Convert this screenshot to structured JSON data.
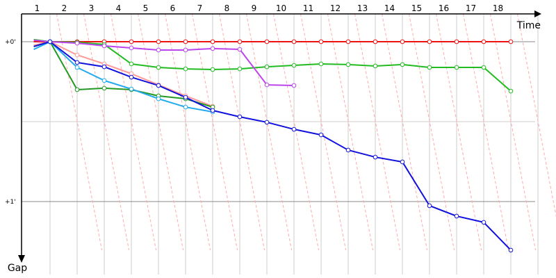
{
  "chart_data": {
    "type": "line",
    "title": "",
    "xlabel": "Time",
    "ylabel": "Gap",
    "laps": [
      "1",
      "2",
      "3",
      "4",
      "5",
      "6",
      "7",
      "8",
      "9",
      "10",
      "11",
      "12",
      "13",
      "14",
      "15",
      "16",
      "17",
      "18"
    ],
    "y_tick_labels": [
      "+0'",
      "+1'"
    ],
    "y_ticks": [
      0,
      1
    ],
    "grid": true,
    "series": [
      {
        "color": "#ee1111",
        "points": [
          [
            0.4,
            0.0
          ],
          [
            1.0,
            0.0
          ],
          [
            2.0,
            0.0
          ],
          [
            3.0,
            0.0
          ],
          [
            4.0,
            0.0
          ],
          [
            5.0,
            0.0
          ],
          [
            6.0,
            0.0
          ],
          [
            7.0,
            0.0
          ],
          [
            8.0,
            0.0
          ],
          [
            9.0,
            0.0
          ],
          [
            10.0,
            0.0
          ],
          [
            11.0,
            0.0
          ],
          [
            12.0,
            0.0
          ],
          [
            13.0,
            0.0
          ],
          [
            14.0,
            0.0
          ],
          [
            15.0,
            0.0
          ],
          [
            16.0,
            0.0
          ],
          [
            17.0,
            0.0
          ],
          [
            18.0,
            0.0
          ]
        ]
      },
      {
        "color": "#22bb22",
        "points": [
          [
            0.4,
            -0.013
          ],
          [
            1.0,
            0.0
          ],
          [
            2.0,
            0.004
          ],
          [
            3.0,
            0.017
          ],
          [
            4.0,
            0.139
          ],
          [
            5.0,
            0.161
          ],
          [
            6.0,
            0.17
          ],
          [
            7.0,
            0.174
          ],
          [
            8.0,
            0.17
          ],
          [
            9.0,
            0.157
          ],
          [
            10.0,
            0.148
          ],
          [
            11.0,
            0.139
          ],
          [
            12.0,
            0.143
          ],
          [
            13.0,
            0.152
          ],
          [
            14.0,
            0.143
          ],
          [
            15.0,
            0.161
          ],
          [
            16.0,
            0.161
          ],
          [
            17.0,
            0.161
          ],
          [
            18.0,
            0.309
          ]
        ]
      },
      {
        "color": "#bb44ee",
        "points": [
          [
            0.4,
            -0.009
          ],
          [
            1.0,
            0.0
          ],
          [
            2.0,
            0.009
          ],
          [
            3.0,
            0.026
          ],
          [
            4.0,
            0.039
          ],
          [
            5.0,
            0.052
          ],
          [
            6.0,
            0.052
          ],
          [
            7.0,
            0.043
          ],
          [
            8.0,
            0.048
          ],
          [
            9.0,
            0.27
          ],
          [
            10.0,
            0.274
          ]
        ]
      },
      {
        "color": "#ff9999",
        "points": [
          [
            0.4,
            0.022
          ],
          [
            1.0,
            0.0
          ],
          [
            2.0,
            0.083
          ],
          [
            3.0,
            0.139
          ],
          [
            4.0,
            0.2
          ],
          [
            5.0,
            0.27
          ],
          [
            6.0,
            0.339
          ],
          [
            7.0,
            0.404
          ]
        ]
      },
      {
        "color": "#229922",
        "points": [
          [
            0.4,
            0.03
          ],
          [
            1.0,
            0.0
          ],
          [
            2.0,
            0.3
          ],
          [
            3.0,
            0.291
          ],
          [
            4.0,
            0.3
          ],
          [
            5.0,
            0.339
          ],
          [
            6.0,
            0.357
          ],
          [
            7.0,
            0.409
          ]
        ]
      },
      {
        "color": "#22aaee",
        "points": [
          [
            0.4,
            0.048
          ],
          [
            1.0,
            0.0
          ],
          [
            2.0,
            0.161
          ],
          [
            3.0,
            0.243
          ],
          [
            4.0,
            0.296
          ],
          [
            5.0,
            0.357
          ],
          [
            6.0,
            0.409
          ],
          [
            7.0,
            0.439
          ]
        ]
      },
      {
        "color": "#1111dd",
        "points": [
          [
            0.4,
            0.03
          ],
          [
            1.0,
            0.0
          ],
          [
            2.0,
            0.13
          ],
          [
            3.0,
            0.157
          ],
          [
            4.0,
            0.222
          ],
          [
            5.0,
            0.274
          ],
          [
            6.0,
            0.348
          ],
          [
            7.0,
            0.43
          ],
          [
            8.0,
            0.47
          ],
          [
            9.0,
            0.504
          ],
          [
            10.0,
            0.548
          ],
          [
            11.0,
            0.583
          ],
          [
            12.0,
            0.678
          ],
          [
            13.0,
            0.722
          ],
          [
            14.0,
            0.752
          ],
          [
            15.0,
            1.026
          ],
          [
            16.0,
            1.091
          ],
          [
            17.0,
            1.13
          ],
          [
            18.0,
            1.304
          ]
        ]
      }
    ]
  }
}
